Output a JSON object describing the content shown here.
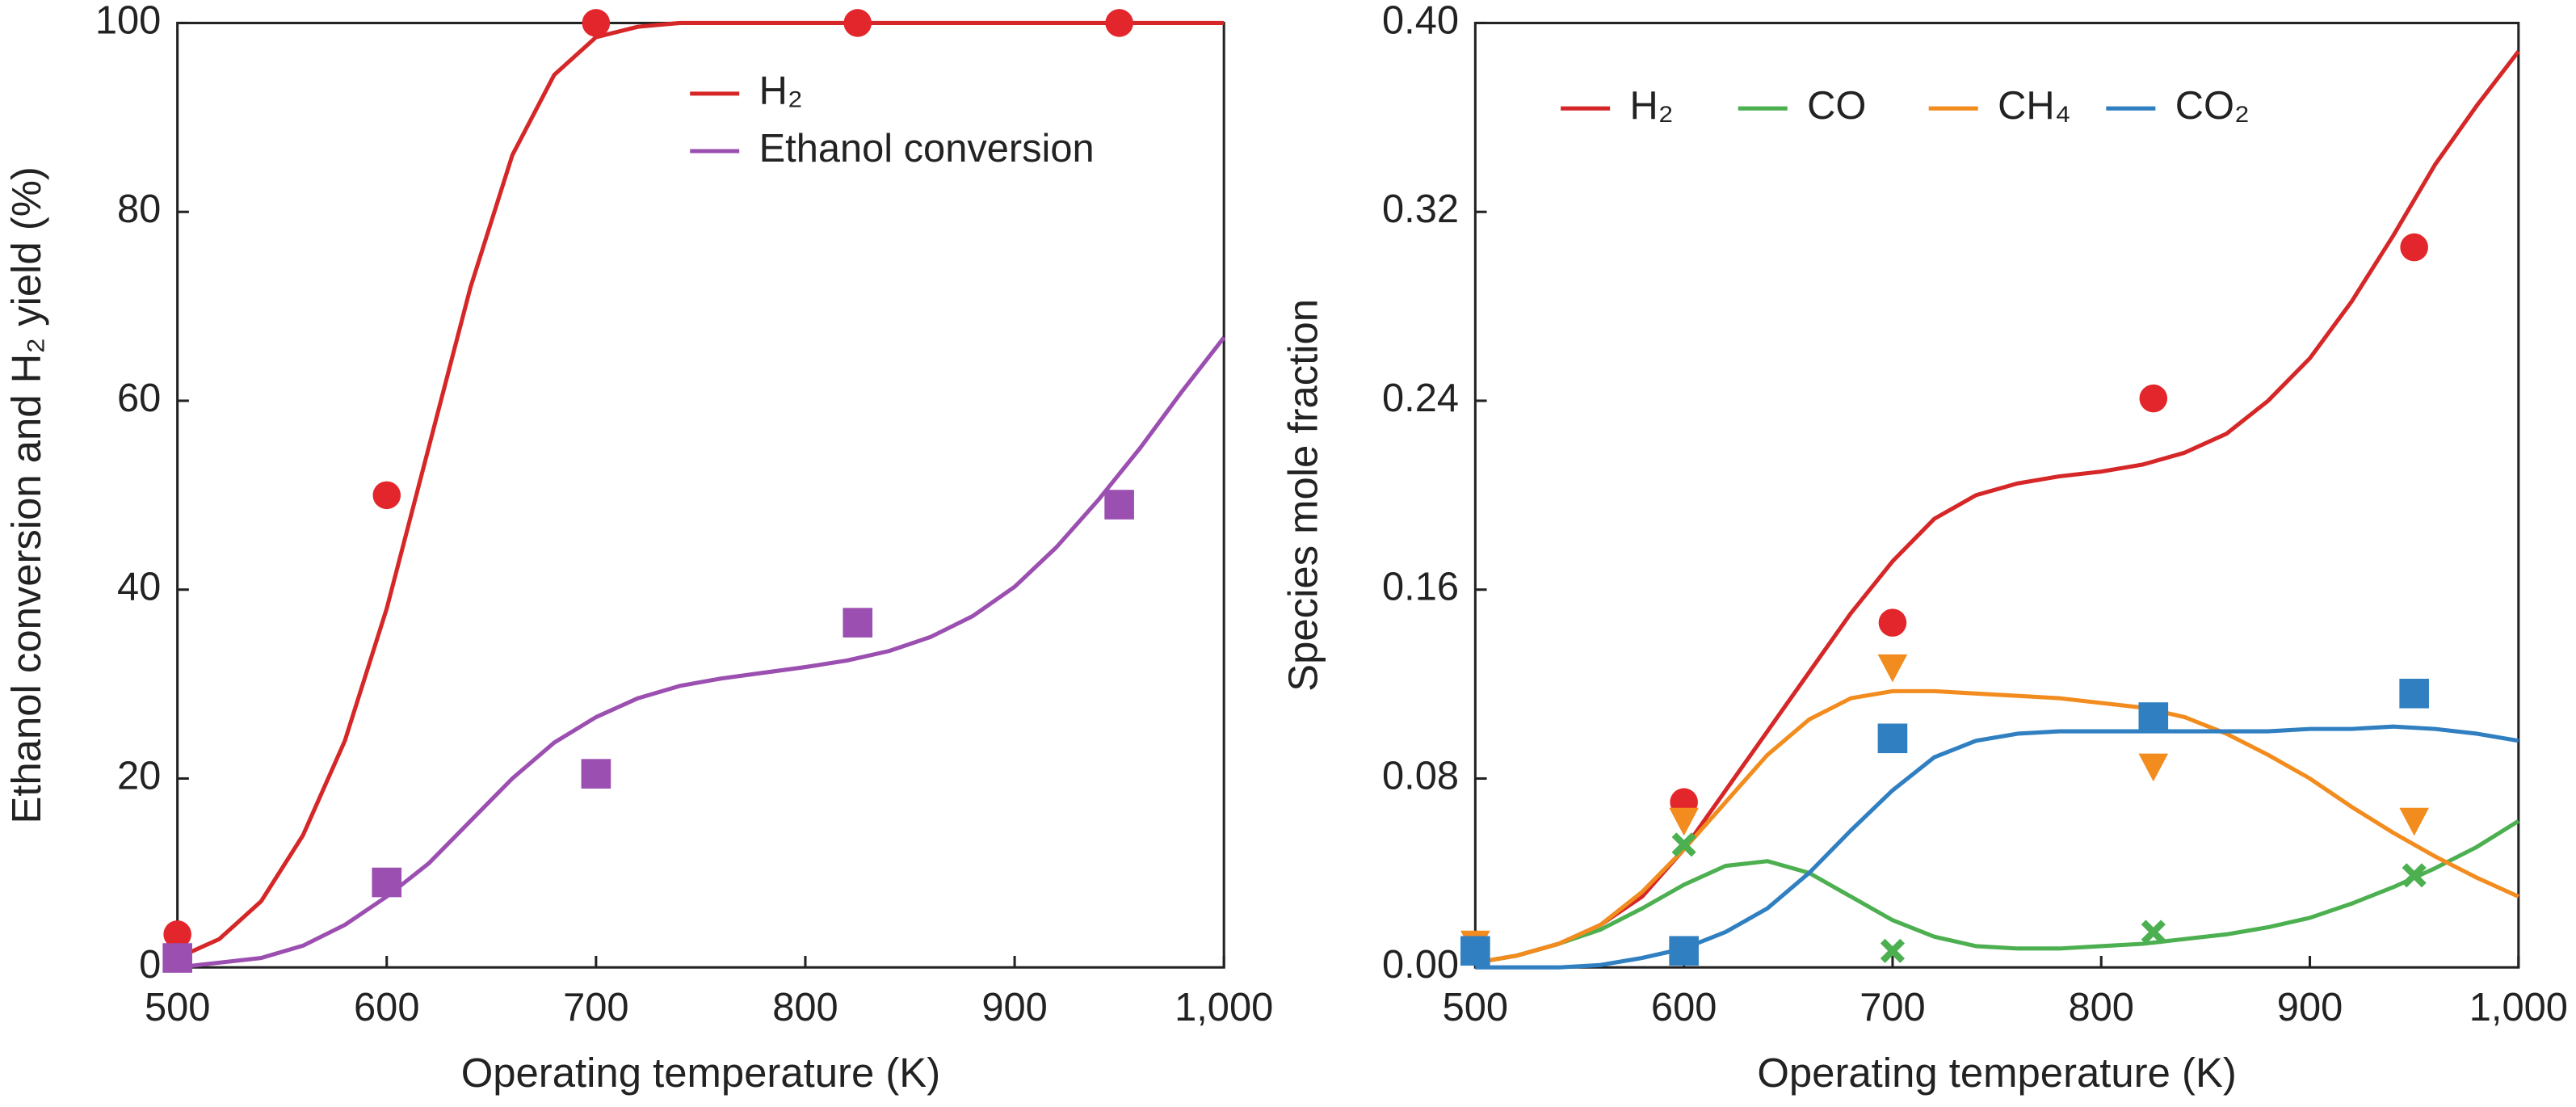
{
  "chart_data": [
    {
      "type": "line",
      "xlabel": "Operating temperature (K)",
      "ylabel": "Ethanol conversion and H₂ yield (%)",
      "xlim": [
        500,
        1000
      ],
      "xticks": [
        500,
        600,
        700,
        800,
        900,
        {
          "value": 1000,
          "label": "1,000"
        }
      ],
      "ylim": [
        0,
        100
      ],
      "yticks": [
        0,
        20,
        40,
        60,
        80,
        100
      ],
      "legend": "upper-center-vertical",
      "x": [
        500,
        520,
        540,
        560,
        580,
        600,
        620,
        640,
        660,
        680,
        700,
        720,
        740,
        760,
        780,
        800,
        820,
        840,
        860,
        880,
        900,
        920,
        940,
        960,
        980,
        1000
      ],
      "series": [
        {
          "name": "H₂",
          "color": "#d62728",
          "values": [
            1,
            3,
            7,
            14,
            24,
            38,
            55,
            72,
            86,
            94.5,
            98.5,
            99.6,
            100,
            100,
            100,
            100,
            100,
            100,
            100,
            100,
            100,
            100,
            100,
            100,
            100,
            100
          ]
        },
        {
          "name": "Ethanol conversion",
          "color": "#9b4fb0",
          "values": [
            0,
            0.5,
            1,
            2.3,
            4.5,
            7.5,
            11,
            15.5,
            20,
            23.8,
            26.5,
            28.5,
            29.8,
            30.6,
            31.2,
            31.8,
            32.5,
            33.5,
            35,
            37.2,
            40.3,
            44.5,
            49.5,
            55,
            61,
            66.7
          ]
        }
      ],
      "points": [
        {
          "color": "#e3262b",
          "marker": "circle",
          "x": [
            500,
            600,
            700,
            825,
            950
          ],
          "values": [
            3.5,
            50,
            100,
            100,
            100
          ]
        },
        {
          "color": "#9b4fb0",
          "marker": "square",
          "x": [
            500,
            600,
            700,
            825,
            950
          ],
          "values": [
            1,
            9,
            20.5,
            36.5,
            49
          ]
        }
      ]
    },
    {
      "type": "line",
      "xlabel": "Operating temperature (K)",
      "ylabel": "Species mole fraction",
      "xlim": [
        500,
        1000
      ],
      "xticks": [
        500,
        600,
        700,
        800,
        900,
        {
          "value": 1000,
          "label": "1,000"
        }
      ],
      "ylim": [
        0,
        0.4
      ],
      "yticks": [
        {
          "value": 0,
          "label": "0.00"
        },
        0.08,
        0.16,
        0.24,
        0.32,
        {
          "value": 0.4,
          "label": "0.40"
        }
      ],
      "legend": "upper-left-horizontal",
      "x": [
        500,
        520,
        540,
        560,
        580,
        600,
        620,
        640,
        660,
        680,
        700,
        720,
        740,
        760,
        780,
        800,
        820,
        840,
        860,
        880,
        900,
        920,
        940,
        960,
        980,
        1000
      ],
      "series": [
        {
          "name": "H₂",
          "color": "#d62728",
          "values": [
            0.002,
            0.005,
            0.01,
            0.018,
            0.03,
            0.05,
            0.075,
            0.1,
            0.125,
            0.15,
            0.172,
            0.19,
            0.2,
            0.205,
            0.208,
            0.21,
            0.213,
            0.218,
            0.226,
            0.24,
            0.258,
            0.282,
            0.31,
            0.34,
            0.365,
            0.388
          ]
        },
        {
          "name": "CO",
          "color": "#4caf50",
          "values": [
            0.002,
            0.005,
            0.01,
            0.016,
            0.025,
            0.035,
            0.043,
            0.045,
            0.04,
            0.03,
            0.02,
            0.013,
            0.009,
            0.008,
            0.008,
            0.009,
            0.01,
            0.012,
            0.014,
            0.017,
            0.021,
            0.027,
            0.034,
            0.042,
            0.051,
            0.062
          ]
        },
        {
          "name": "CH₄",
          "color": "#f28c1e",
          "values": [
            0.002,
            0.005,
            0.01,
            0.018,
            0.032,
            0.05,
            0.07,
            0.09,
            0.105,
            0.114,
            0.117,
            0.117,
            0.116,
            0.115,
            0.114,
            0.112,
            0.11,
            0.106,
            0.099,
            0.09,
            0.08,
            0.068,
            0.057,
            0.047,
            0.038,
            0.03
          ]
        },
        {
          "name": "CO₂",
          "color": "#2f7fc1",
          "values": [
            0,
            0,
            0,
            0.001,
            0.004,
            0.008,
            0.015,
            0.025,
            0.04,
            0.058,
            0.075,
            0.089,
            0.096,
            0.099,
            0.1,
            0.1,
            0.1,
            0.1,
            0.1,
            0.1,
            0.101,
            0.101,
            0.102,
            0.101,
            0.099,
            0.096
          ]
        }
      ],
      "points": [
        {
          "color": "#e3262b",
          "marker": "circle",
          "x": [
            600,
            700,
            825,
            950
          ],
          "values": [
            0.07,
            0.146,
            0.241,
            0.305
          ]
        },
        {
          "color": "#f28c1e",
          "marker": "triangle-down",
          "x": [
            500,
            600,
            700,
            825,
            950
          ],
          "values": [
            0.01,
            0.062,
            0.127,
            0.085,
            0.062
          ]
        },
        {
          "color": "#4caf50",
          "marker": "cross",
          "x": [
            600,
            700,
            825,
            950
          ],
          "values": [
            0.052,
            0.007,
            0.015,
            0.039
          ]
        },
        {
          "color": "#2f7fc1",
          "marker": "square",
          "x": [
            500,
            600,
            700,
            825,
            950
          ],
          "values": [
            0.007,
            0.007,
            0.097,
            0.106,
            0.116
          ]
        }
      ]
    }
  ]
}
